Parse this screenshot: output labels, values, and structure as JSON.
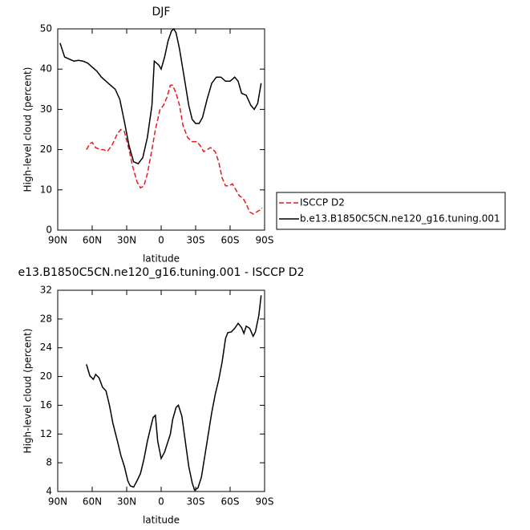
{
  "chart_data": [
    {
      "type": "line",
      "title": "DJF",
      "xlabel": "latitude",
      "ylabel": "High-level cloud (percent)",
      "xlim": [
        90,
        -90
      ],
      "ylim": [
        0,
        50
      ],
      "xticks": [
        {
          "value": 90,
          "label": "90N"
        },
        {
          "value": 60,
          "label": "60N"
        },
        {
          "value": 30,
          "label": "30N"
        },
        0,
        {
          "value": -30,
          "label": "30S"
        },
        {
          "value": -60,
          "label": "60S"
        },
        {
          "value": -90,
          "label": "90S"
        }
      ],
      "yticks": [
        0,
        10,
        20,
        30,
        40,
        50
      ],
      "legend": "right",
      "series": [
        {
          "name": "ISCCP D2",
          "color": "#e41a1c",
          "dashed": true,
          "x": [
            65,
            62,
            60,
            57,
            53,
            50,
            47,
            43,
            38,
            35,
            32,
            28,
            25,
            21,
            18,
            15,
            12,
            8,
            5,
            1,
            -2,
            -5,
            -8,
            -10,
            -13,
            -16,
            -19,
            -23,
            -27,
            -31,
            -34,
            -37,
            -40,
            -43,
            -47,
            -50,
            -53,
            -56,
            -59,
            -62,
            -65,
            -68,
            -71,
            -74,
            -77,
            -80,
            -83,
            -86,
            -88
          ],
          "values": [
            20,
            21.5,
            21.8,
            20.5,
            20,
            20,
            19.5,
            21,
            24,
            25,
            24.5,
            20,
            16,
            12,
            10.5,
            11,
            14,
            20,
            25,
            30,
            31,
            33,
            36,
            36,
            34,
            31,
            26,
            23,
            22,
            22,
            21,
            19.5,
            20,
            20.5,
            19.5,
            17,
            13,
            11,
            11,
            11.5,
            10,
            8.5,
            8,
            6.5,
            4.5,
            4,
            4.5,
            5,
            5.5
          ]
        },
        {
          "name": "b.e13.B1850C5CN.ne120_g16.tuning.001",
          "color": "#000000",
          "dashed": false,
          "x": [
            88,
            84,
            80,
            76,
            72,
            68,
            64,
            60,
            56,
            52,
            48,
            44,
            40,
            36,
            32,
            28,
            24,
            20,
            16,
            12,
            8,
            6,
            2,
            0,
            -3,
            -6,
            -9,
            -11,
            -13,
            -16,
            -20,
            -24,
            -27,
            -30,
            -33,
            -36,
            -40,
            -44,
            -48,
            -52,
            -56,
            -60,
            -64,
            -67,
            -70,
            -74,
            -78,
            -81,
            -84,
            -87
          ],
          "values": [
            46.5,
            43,
            42.5,
            42,
            42.2,
            42,
            41.5,
            40.5,
            39.5,
            38,
            37,
            36,
            35,
            32.5,
            27,
            21,
            17,
            16.5,
            18,
            23,
            31,
            42,
            41,
            40,
            43,
            47,
            49.5,
            50,
            49,
            45,
            38,
            31,
            27.5,
            26.5,
            26.5,
            28,
            32.5,
            36.5,
            38,
            38,
            37,
            37,
            38,
            37,
            34,
            33.5,
            31,
            30,
            31.5,
            36.5
          ]
        }
      ]
    },
    {
      "type": "line",
      "title": "e13.B1850C5CN.ne120_g16.tuning.001 - ISCCP D2",
      "xlabel": "latitude",
      "ylabel": "High-level cloud (percent)",
      "xlim": [
        90,
        -90
      ],
      "ylim": [
        4,
        32
      ],
      "xticks": [
        {
          "value": 90,
          "label": "90N"
        },
        {
          "value": 60,
          "label": "60N"
        },
        {
          "value": 30,
          "label": "30N"
        },
        0,
        {
          "value": -30,
          "label": "30S"
        },
        {
          "value": -60,
          "label": "60S"
        },
        {
          "value": -90,
          "label": "90S"
        }
      ],
      "yticks": [
        4,
        8,
        12,
        16,
        20,
        24,
        28,
        32
      ],
      "series": [
        {
          "color": "#000000",
          "dashed": false,
          "x": [
            65,
            62,
            59,
            57,
            54,
            51,
            48,
            45,
            42,
            38,
            35,
            32,
            29,
            27,
            24,
            21,
            18,
            15,
            12,
            9,
            7,
            5,
            3,
            0,
            -3,
            -6,
            -8,
            -10,
            -13,
            -15,
            -18,
            -21,
            -24,
            -27,
            -29,
            -32,
            -35,
            -38,
            -41,
            -44,
            -47,
            -50,
            -53,
            -56,
            -58,
            -61,
            -64,
            -67,
            -70,
            -72,
            -74,
            -77,
            -80,
            -82,
            -85,
            -87
          ],
          "values": [
            21.7,
            20.1,
            19.6,
            20.3,
            19.8,
            18.5,
            18,
            16,
            13.5,
            11,
            9,
            7.5,
            5.5,
            4.8,
            4.6,
            5.5,
            6.5,
            8.5,
            11,
            13,
            14.3,
            14.6,
            11,
            8.6,
            9.5,
            11,
            12,
            14,
            15.7,
            16,
            14.5,
            11,
            7.5,
            5.2,
            4.2,
            4.5,
            6,
            9,
            12,
            15,
            17.5,
            19.5,
            22,
            25.3,
            26.1,
            26.2,
            26.7,
            27.4,
            26.8,
            26,
            27,
            26.7,
            25.6,
            26.2,
            28.5,
            31.3
          ]
        }
      ]
    }
  ]
}
